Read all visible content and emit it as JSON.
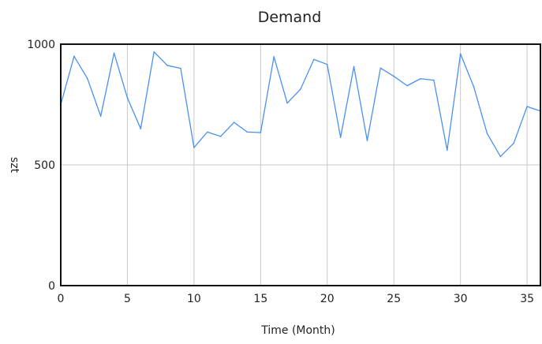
{
  "chart_data": {
    "type": "line",
    "title": "Demand",
    "xlabel": "Time (Month)",
    "ylabel": "szt",
    "xlim": [
      0,
      36
    ],
    "ylim": [
      0,
      1000
    ],
    "xticks": [
      0,
      5,
      10,
      15,
      20,
      25,
      30,
      35
    ],
    "yticks": [
      0,
      500,
      1000
    ],
    "grid": true,
    "legend": "none",
    "series": [
      {
        "color": "#4a90f0",
        "x": [
          0,
          1,
          2,
          3,
          4,
          5,
          6,
          7,
          8,
          9,
          10,
          11,
          12,
          13,
          14,
          15,
          16,
          17,
          18,
          19,
          20,
          21,
          22,
          23,
          24,
          25,
          26,
          27,
          28,
          29,
          30,
          31,
          32,
          33,
          34,
          35,
          36
        ],
        "y": [
          750,
          950,
          858,
          702,
          963,
          778,
          650,
          968,
          912,
          900,
          572,
          636,
          618,
          676,
          636,
          634,
          948,
          756,
          814,
          937,
          916,
          614,
          907,
          601,
          901,
          867,
          828,
          857,
          851,
          561,
          960,
          823,
          630,
          535,
          590,
          742,
          723
        ]
      }
    ]
  }
}
